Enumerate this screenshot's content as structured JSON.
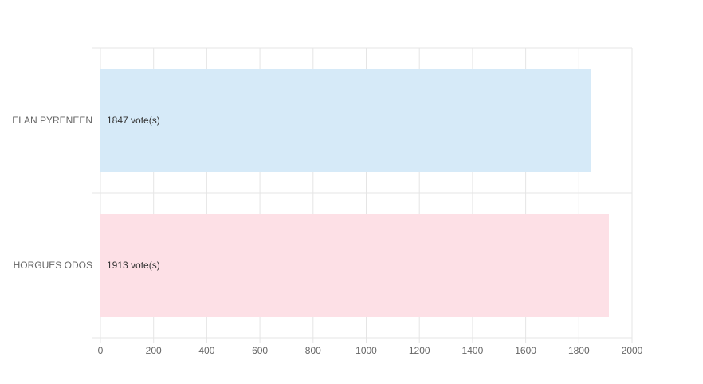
{
  "chart_data": {
    "type": "bar",
    "orientation": "horizontal",
    "categories": [
      "ELAN PYRENEEN",
      "HORGUES ODOS"
    ],
    "values": [
      1847,
      1913
    ],
    "data_labels": [
      "1847 vote(s)",
      "1913 vote(s)"
    ],
    "xlim": [
      0,
      2000
    ],
    "x_ticks": [
      "0",
      "200",
      "400",
      "600",
      "800",
      "1000",
      "1200",
      "1400",
      "1600",
      "1800",
      "2000"
    ],
    "grid": true,
    "legend": "none",
    "colors": {
      "bar_fills": [
        "#d6eaf8",
        "#fde0e6"
      ],
      "grid": "#e5e5e5",
      "tick_text": "#666666",
      "label_text": "#333333"
    }
  }
}
